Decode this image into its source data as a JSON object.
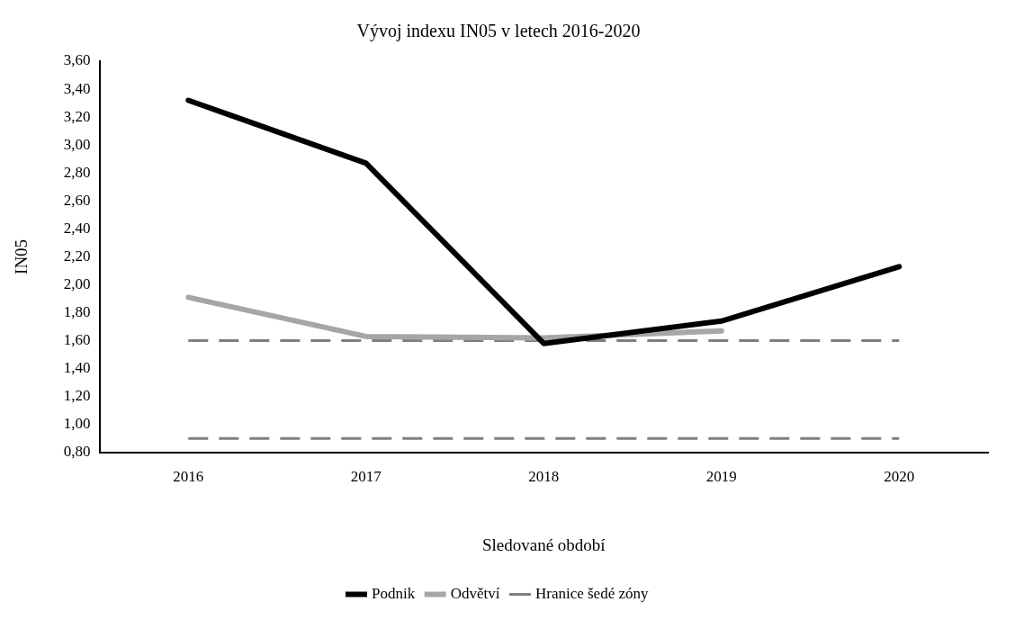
{
  "chart_data": {
    "type": "line",
    "title": "Vývoj indexu IN05 v letech 2016-2020",
    "xlabel": "Sledované období",
    "ylabel": "IN05",
    "categories": [
      "2016",
      "2017",
      "2018",
      "2019",
      "2020"
    ],
    "series": [
      {
        "name": "Podnik",
        "color": "#000000",
        "values": [
          3.32,
          2.87,
          1.58,
          1.74,
          2.13
        ]
      },
      {
        "name": "Odvětví",
        "color": "#a6a6a6",
        "values": [
          1.91,
          1.63,
          1.62,
          1.67,
          null
        ]
      },
      {
        "name": "Hranice šedé zóny",
        "color": "#7f7f7f",
        "line_style": "dashed",
        "values": [
          1.6,
          1.6,
          1.6,
          1.6,
          1.6
        ]
      },
      {
        "color": "#7f7f7f",
        "line_style": "dashed",
        "values": [
          0.9,
          0.9,
          0.9,
          0.9,
          0.9
        ]
      }
    ],
    "ylim": [
      0.8,
      3.6
    ],
    "yticks": [
      {
        "value": 0.8,
        "label": "0,80"
      },
      {
        "value": 1.0,
        "label": "1,00"
      },
      {
        "value": 1.2,
        "label": "1,20"
      },
      {
        "value": 1.4,
        "label": "1,40"
      },
      {
        "value": 1.6,
        "label": "1,60"
      },
      {
        "value": 1.8,
        "label": "1,80"
      },
      {
        "value": 2.0,
        "label": "2,00"
      },
      {
        "value": 2.2,
        "label": "2,20"
      },
      {
        "value": 2.4,
        "label": "2,40"
      },
      {
        "value": 2.6,
        "label": "2,60"
      },
      {
        "value": 2.8,
        "label": "2,80"
      },
      {
        "value": 3.0,
        "label": "3,00"
      },
      {
        "value": 3.2,
        "label": "3,20"
      },
      {
        "value": 3.4,
        "label": "3,40"
      },
      {
        "value": 3.6,
        "label": "3,60"
      }
    ],
    "grid": false,
    "legend": "bottom",
    "marker": "none"
  }
}
